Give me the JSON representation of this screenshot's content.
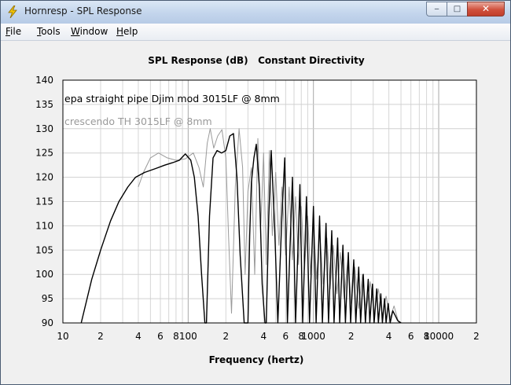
{
  "window": {
    "title": "Hornresp - SPL Response",
    "controls": {
      "minimize": "‒",
      "maximize": "□",
      "close": "✕"
    }
  },
  "menu": [
    {
      "key": "F",
      "rest": "ile"
    },
    {
      "key": "T",
      "rest": "ools"
    },
    {
      "key": "W",
      "rest": "indow"
    },
    {
      "key": "H",
      "rest": "elp"
    }
  ],
  "chart_data": {
    "type": "line",
    "title": "SPL Response (dB)   Constant Directivity",
    "xlabel": "Frequency (hertz)",
    "ylabel": "",
    "x_scale": "log",
    "xlim": [
      10,
      20000
    ],
    "ylim": [
      90,
      140
    ],
    "y_ticks": [
      90,
      95,
      100,
      105,
      110,
      115,
      120,
      125,
      130,
      135,
      140
    ],
    "x_ticks": [
      {
        "v": 10,
        "label": "10"
      },
      {
        "v": 20,
        "label": "2"
      },
      {
        "v": 40,
        "label": "4"
      },
      {
        "v": 60,
        "label": "6"
      },
      {
        "v": 80,
        "label": "8"
      },
      {
        "v": 100,
        "label": "100"
      },
      {
        "v": 200,
        "label": "2"
      },
      {
        "v": 400,
        "label": "4"
      },
      {
        "v": 600,
        "label": "6"
      },
      {
        "v": 800,
        "label": "8"
      },
      {
        "v": 1000,
        "label": "1000"
      },
      {
        "v": 2000,
        "label": "2"
      },
      {
        "v": 4000,
        "label": "4"
      },
      {
        "v": 6000,
        "label": "6"
      },
      {
        "v": 8000,
        "label": "8"
      },
      {
        "v": 10000,
        "label": "10000"
      },
      {
        "v": 20000,
        "label": "2"
      }
    ],
    "grid": true,
    "annotations": [
      {
        "text": "epa straight pipe Djim mod 3015LF @ 8mm",
        "color": "#000000"
      },
      {
        "text": "crescendo TH 3015LF @ 8mm",
        "color": "#9a9a9a"
      }
    ],
    "series": [
      {
        "name": "epa straight pipe Djim mod 3015LF @ 8mm",
        "color": "#000000",
        "x": [
          14,
          17,
          20,
          24,
          28,
          33,
          38,
          45,
          55,
          65,
          75,
          85,
          95,
          105,
          112,
          120,
          128,
          136,
          140,
          148,
          158,
          170,
          185,
          200,
          215,
          230,
          245,
          260,
          280,
          300,
          310,
          320,
          335,
          350,
          370,
          390,
          410,
          420,
          440,
          460,
          490,
          520,
          560,
          590,
          620,
          680,
          720,
          780,
          820,
          880,
          930,
          1000,
          1050,
          1120,
          1180,
          1260,
          1320,
          1400,
          1460,
          1560,
          1620,
          1720,
          1800,
          1900,
          1980,
          2100,
          2180,
          2300,
          2380,
          2500,
          2600,
          2740,
          2820,
          2960,
          3050,
          3200,
          3300,
          3450,
          3550,
          3700,
          3800,
          3950,
          4100,
          4300,
          4500,
          4700,
          5000
        ],
        "y": [
          90,
          99,
          105,
          111,
          115,
          118,
          120,
          121,
          121.8,
          122.5,
          123,
          123.5,
          124.8,
          123.5,
          120,
          112,
          100,
          90,
          90,
          112,
          124,
          125.5,
          125,
          125.5,
          128.5,
          129,
          120,
          104,
          90,
          90,
          108,
          119,
          124,
          126.8,
          118,
          98,
          90,
          90,
          112,
          125.5,
          110,
          90,
          112,
          124,
          90,
          120,
          90,
          118.5,
          90,
          116,
          90,
          114,
          90,
          112,
          90,
          110.5,
          90,
          109,
          90,
          107.5,
          90,
          106,
          90,
          104.5,
          90,
          103,
          90,
          101.5,
          90,
          100,
          90,
          99,
          90,
          98,
          90,
          97,
          90,
          96,
          90,
          95,
          90,
          94,
          90,
          92.5,
          91.5,
          90.5,
          90
        ]
      },
      {
        "name": "crescendo TH 3015LF @ 8mm",
        "color": "#9a9a9a",
        "x": [
          40,
          44,
          50,
          58,
          68,
          80,
          95,
          110,
          122,
          132,
          142,
          150,
          160,
          172,
          186,
          200,
          210,
          222,
          238,
          255,
          272,
          285,
          300,
          320,
          340,
          360,
          380,
          400,
          420,
          445,
          470,
          500,
          530,
          560,
          600,
          640,
          680,
          720,
          760,
          800,
          850,
          900,
          950,
          1000,
          1060,
          1120,
          1200,
          1280,
          1360,
          1440,
          1540,
          1640,
          1760,
          1880,
          2000,
          2140,
          2300,
          2460,
          2640,
          2840,
          3050,
          3300,
          3550,
          3800,
          4100,
          4400,
          4800
        ],
        "y": [
          118,
          121,
          124,
          125,
          124,
          123.5,
          123.8,
          125,
          122,
          118,
          127,
          130,
          126,
          128.5,
          129.8,
          124,
          108,
          92,
          118,
          130,
          122,
          100,
          117,
          122,
          100,
          128,
          110,
          125,
          102,
          125.5,
          108,
          121,
          106,
          118,
          104,
          118,
          103,
          116,
          102,
          114,
          101,
          112,
          100,
          110.5,
          99,
          109,
          98,
          107.5,
          97,
          106,
          96,
          104.5,
          95,
          103,
          94,
          101.5,
          93,
          100,
          92.5,
          98.5,
          92,
          97,
          91.5,
          95.5,
          91,
          93.5,
          90
        ]
      }
    ]
  }
}
